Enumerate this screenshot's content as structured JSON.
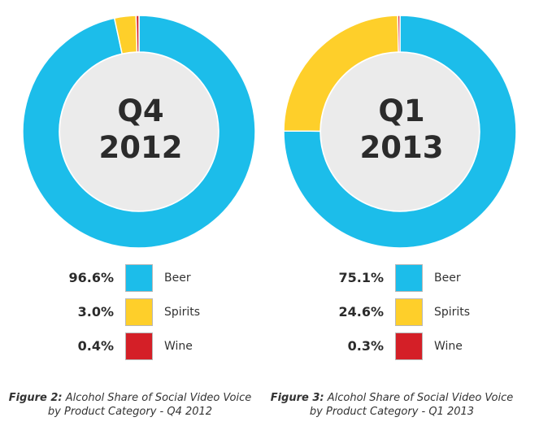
{
  "chart_data": [
    {
      "type": "pie",
      "title": "Q4 2012",
      "title_lines": [
        "Q4",
        "2012"
      ],
      "donut": true,
      "categories": [
        "Beer",
        "Spirits",
        "Wine"
      ],
      "values": [
        96.6,
        3.0,
        0.4
      ],
      "value_labels": [
        "96.6%",
        "3.0%",
        "0.4%"
      ],
      "colors": [
        "#1cbdea",
        "#fecf2a",
        "#d41f27"
      ],
      "caption_prefix": "Figure 2:",
      "caption_line1": "Alcohol Share of Social Video Voice",
      "caption_line2": "by Product Category - Q4 2012"
    },
    {
      "type": "pie",
      "title": "Q1 2013",
      "title_lines": [
        "Q1",
        "2013"
      ],
      "donut": true,
      "categories": [
        "Beer",
        "Spirits",
        "Wine"
      ],
      "values": [
        75.1,
        24.6,
        0.3
      ],
      "value_labels": [
        "75.1%",
        "24.6%",
        "0.3%"
      ],
      "colors": [
        "#1cbdea",
        "#fecf2a",
        "#d41f27"
      ],
      "caption_prefix": "Figure 3:",
      "caption_line1": "Alcohol Share of Social Video Voice",
      "caption_line2": "by Product Category - Q1 2013"
    }
  ],
  "style": {
    "donut_hole_color": "#ebebeb",
    "donut_border_color": "#ffffff"
  }
}
